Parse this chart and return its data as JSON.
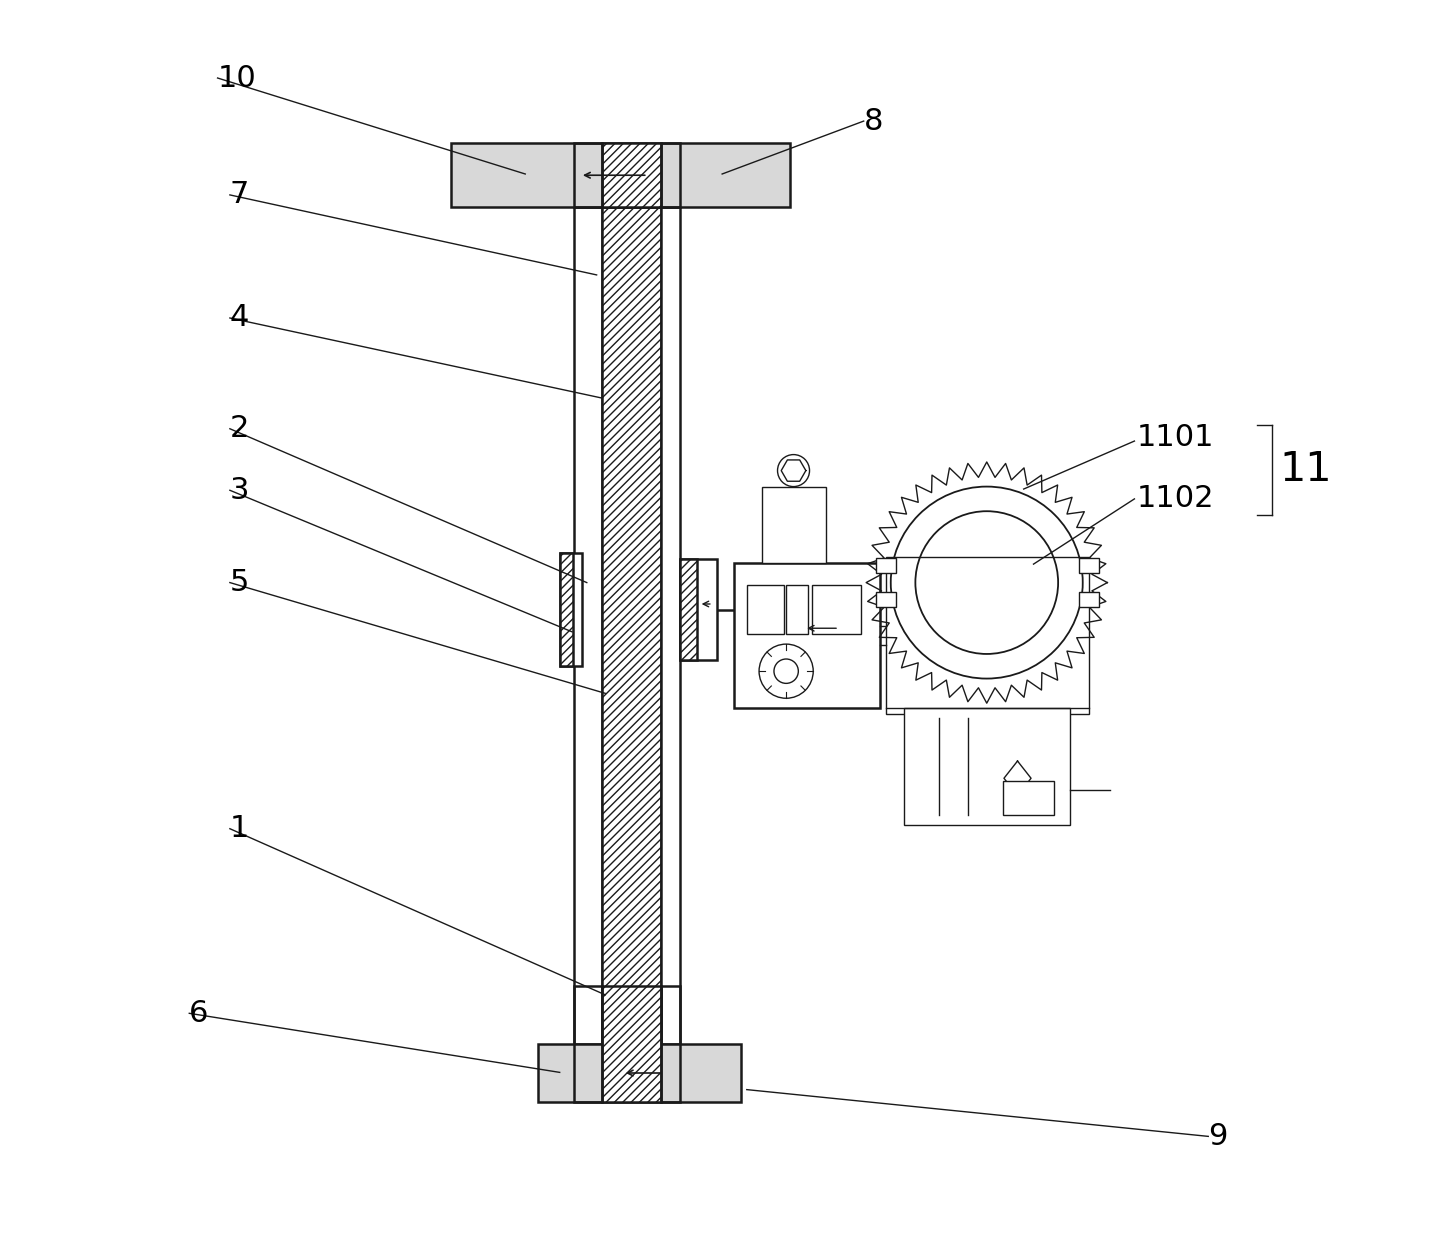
{
  "bg_color": "#ffffff",
  "line_color": "#1a1a1a",
  "label_color": "#000000",
  "fig_width": 14.32,
  "fig_height": 12.39
}
